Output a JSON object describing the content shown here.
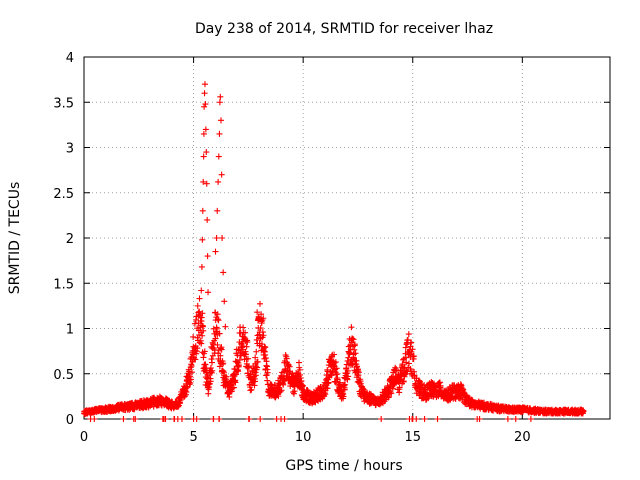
{
  "chart_data": {
    "type": "scatter",
    "title": "Day 238 of 2014, SRMTID for receiver lhaz",
    "xlabel": "GPS time / hours",
    "ylabel": "SRMTID / TECUs",
    "xlim": [
      0,
      24
    ],
    "ylim": [
      0,
      4
    ],
    "x_ticks": [
      0,
      5,
      10,
      15,
      20
    ],
    "y_ticks": [
      0,
      0.5,
      1,
      1.5,
      2,
      2.5,
      3,
      3.5,
      4
    ],
    "grid": true,
    "marker": "plus",
    "color": "#ff0000",
    "series_envelope": {
      "name": "SRMTID",
      "x": [
        0,
        0.5,
        1,
        1.5,
        2,
        2.5,
        3,
        3.5,
        4,
        4.3,
        4.6,
        4.9,
        5.0,
        5.1,
        5.2,
        5.3,
        5.4,
        5.5,
        5.6,
        5.7,
        5.8,
        5.9,
        6.0,
        6.1,
        6.2,
        6.3,
        6.4,
        6.5,
        6.6,
        6.8,
        7.0,
        7.2,
        7.4,
        7.6,
        7.8,
        8.0,
        8.2,
        8.4,
        8.6,
        8.8,
        9.0,
        9.2,
        9.4,
        9.6,
        9.8,
        10.0,
        10.2,
        10.4,
        10.6,
        10.8,
        11.0,
        11.2,
        11.4,
        11.6,
        11.8,
        12.0,
        12.2,
        12.4,
        12.6,
        12.8,
        13.0,
        13.2,
        13.4,
        13.6,
        13.8,
        14.0,
        14.2,
        14.4,
        14.6,
        14.8,
        15.0,
        15.2,
        15.4,
        15.6,
        15.8,
        16.0,
        16.2,
        16.4,
        16.6,
        16.8,
        17.0,
        17.2,
        17.4,
        17.6,
        17.8,
        18.0,
        18.5,
        19.0,
        19.5,
        20.0,
        20.5,
        21.0,
        21.5,
        22.0,
        22.5,
        22.8
      ],
      "y": [
        0.07,
        0.09,
        0.1,
        0.12,
        0.13,
        0.15,
        0.17,
        0.2,
        0.15,
        0.17,
        0.3,
        0.55,
        0.75,
        0.9,
        1.05,
        1.1,
        0.95,
        0.6,
        0.4,
        0.35,
        0.6,
        0.8,
        0.95,
        0.9,
        0.75,
        0.55,
        0.45,
        0.35,
        0.3,
        0.38,
        0.65,
        0.9,
        0.75,
        0.4,
        0.5,
        1.0,
        0.85,
        0.35,
        0.28,
        0.3,
        0.4,
        0.55,
        0.45,
        0.35,
        0.5,
        0.28,
        0.25,
        0.22,
        0.25,
        0.28,
        0.32,
        0.55,
        0.6,
        0.35,
        0.28,
        0.5,
        0.8,
        0.6,
        0.35,
        0.25,
        0.22,
        0.2,
        0.18,
        0.22,
        0.28,
        0.35,
        0.45,
        0.38,
        0.55,
        0.75,
        0.6,
        0.35,
        0.3,
        0.28,
        0.32,
        0.3,
        0.32,
        0.28,
        0.25,
        0.3,
        0.28,
        0.3,
        0.22,
        0.18,
        0.15,
        0.15,
        0.13,
        0.11,
        0.1,
        0.1,
        0.09,
        0.08,
        0.08,
        0.08,
        0.08,
        0.08
      ]
    },
    "spikes": [
      {
        "x": 5.35,
        "y": 1.42
      },
      {
        "x": 5.38,
        "y": 1.68
      },
      {
        "x": 5.4,
        "y": 1.98
      },
      {
        "x": 5.42,
        "y": 2.3
      },
      {
        "x": 5.44,
        "y": 2.62
      },
      {
        "x": 5.46,
        "y": 2.9
      },
      {
        "x": 5.47,
        "y": 3.15
      },
      {
        "x": 5.48,
        "y": 3.45
      },
      {
        "x": 5.5,
        "y": 3.6
      },
      {
        "x": 5.52,
        "y": 3.7
      },
      {
        "x": 5.54,
        "y": 3.48
      },
      {
        "x": 5.56,
        "y": 3.2
      },
      {
        "x": 5.58,
        "y": 2.95
      },
      {
        "x": 5.6,
        "y": 2.6
      },
      {
        "x": 5.62,
        "y": 2.2
      },
      {
        "x": 5.64,
        "y": 1.8
      },
      {
        "x": 5.66,
        "y": 1.4
      },
      {
        "x": 6.0,
        "y": 1.85
      },
      {
        "x": 6.05,
        "y": 2.0
      },
      {
        "x": 6.08,
        "y": 2.3
      },
      {
        "x": 6.12,
        "y": 2.62
      },
      {
        "x": 6.15,
        "y": 2.9
      },
      {
        "x": 6.18,
        "y": 3.15
      },
      {
        "x": 6.2,
        "y": 3.5
      },
      {
        "x": 6.22,
        "y": 3.56
      },
      {
        "x": 6.25,
        "y": 3.3
      },
      {
        "x": 6.28,
        "y": 2.7
      },
      {
        "x": 6.3,
        "y": 2.0
      },
      {
        "x": 6.35,
        "y": 1.62
      },
      {
        "x": 6.4,
        "y": 1.3
      },
      {
        "x": 6.45,
        "y": 1.02
      },
      {
        "x": 7.9,
        "y": 1.18
      },
      {
        "x": 7.95,
        "y": 1.1
      },
      {
        "x": 12.3,
        "y": 0.88
      },
      {
        "x": 14.9,
        "y": 0.8
      }
    ]
  }
}
